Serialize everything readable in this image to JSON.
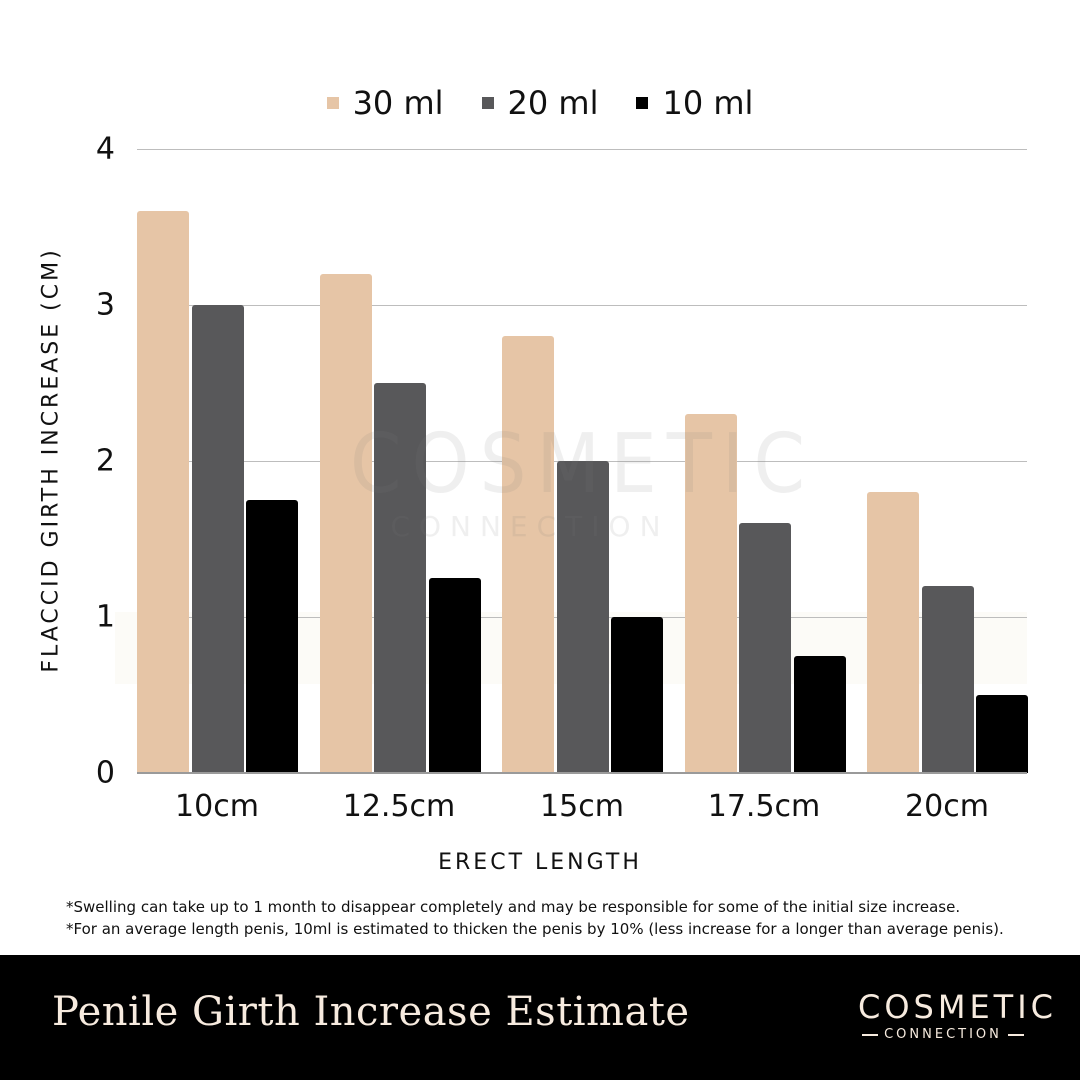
{
  "chart_data": {
    "type": "bar",
    "title": "Penile Girth Increase Estimate",
    "xlabel": "ERECT LENGTH",
    "ylabel": "FLACCID GIRTH INCREASE (CM)",
    "categories": [
      "10cm",
      "12.5cm",
      "15cm",
      "17.5cm",
      "20cm"
    ],
    "series": [
      {
        "name": "30 ml",
        "color": "#e6c5a6",
        "values": [
          3.6,
          3.2,
          2.8,
          2.3,
          1.8
        ]
      },
      {
        "name": "20 ml",
        "color": "#58585a",
        "values": [
          3.0,
          2.5,
          2.0,
          1.6,
          1.2
        ]
      },
      {
        "name": "10 ml",
        "color": "#000000",
        "values": [
          1.75,
          1.25,
          1.0,
          0.75,
          0.5
        ]
      }
    ],
    "ylim": [
      0,
      4
    ],
    "yticks": [
      "0",
      "1",
      "2",
      "3",
      "4"
    ],
    "grid": true,
    "legend_position": "top"
  },
  "legend": [
    {
      "label": "30 ml",
      "color": "#e6c5a6"
    },
    {
      "label": "20 ml",
      "color": "#58585a"
    },
    {
      "label": "10 ml",
      "color": "#000000"
    }
  ],
  "axes": {
    "ylabel": "FLACCID GIRTH INCREASE (CM)",
    "xlabel": "ERECT LENGTH",
    "yticks": [
      "0",
      "1",
      "2",
      "3",
      "4"
    ],
    "xticks": [
      "10cm",
      "12.5cm",
      "15cm",
      "17.5cm",
      "20cm"
    ]
  },
  "watermark": {
    "top": "COSMETIC",
    "bottom": "CONNECTION"
  },
  "notes": [
    "*Swelling can take up to 1 month to disappear completely and may be responsible for some of the initial size increase.",
    "*For an average length penis, 10ml is estimated to thicken the penis by 10% (less increase for a longer than average penis)."
  ],
  "footer": {
    "title": "Penile Girth Increase Estimate",
    "logo_top": "COSMETIC",
    "logo_bottom": "CONNECTION"
  }
}
